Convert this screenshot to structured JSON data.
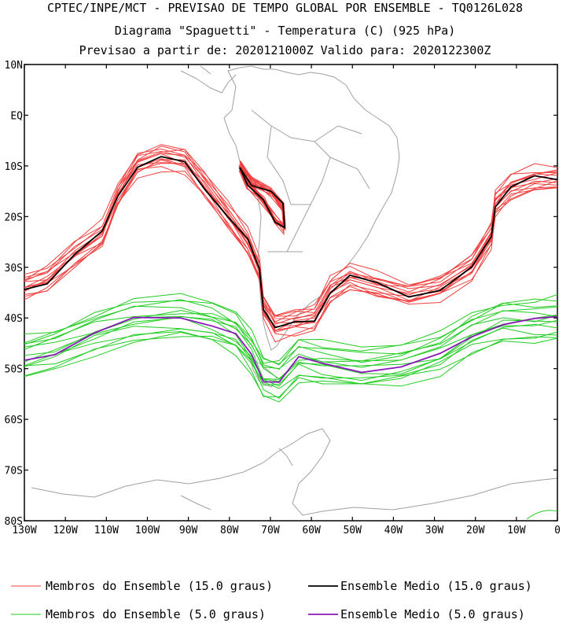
{
  "title": {
    "line1": "CPTEC/INPE/MCT - PREVISAO DE TEMPO GLOBAL POR ENSEMBLE - TQ0126L028",
    "line2": "Diagrama \"Spaguetti\" - Temperatura (C) (925 hPa)",
    "line3": "Previsao a partir de: 2020121000Z  Valido para: 2020122300Z"
  },
  "axes": {
    "lat_labels": [
      "10N",
      "EQ",
      "10S",
      "20S",
      "30S",
      "40S",
      "50S",
      "60S",
      "70S",
      "80S"
    ],
    "lon_labels": [
      "130W",
      "120W",
      "110W",
      "100W",
      "90W",
      "80W",
      "70W",
      "60W",
      "50W",
      "40W",
      "30W",
      "20W",
      "10W",
      "0"
    ]
  },
  "legend": {
    "members_15": "Membros do Ensemble (15.0 graus)",
    "mean_15": "Ensemble Medio (15.0 graus)",
    "members_5": "Membros do Ensemble (5.0 graus)",
    "mean_5": "Ensemble Medio (5.0 graus)"
  },
  "colors": {
    "members_15": "#f04040",
    "mean_15": "#000000",
    "members_5": "#22cc22",
    "mean_5": "#8a1ab8",
    "coast": "#a0a0a0"
  }
}
